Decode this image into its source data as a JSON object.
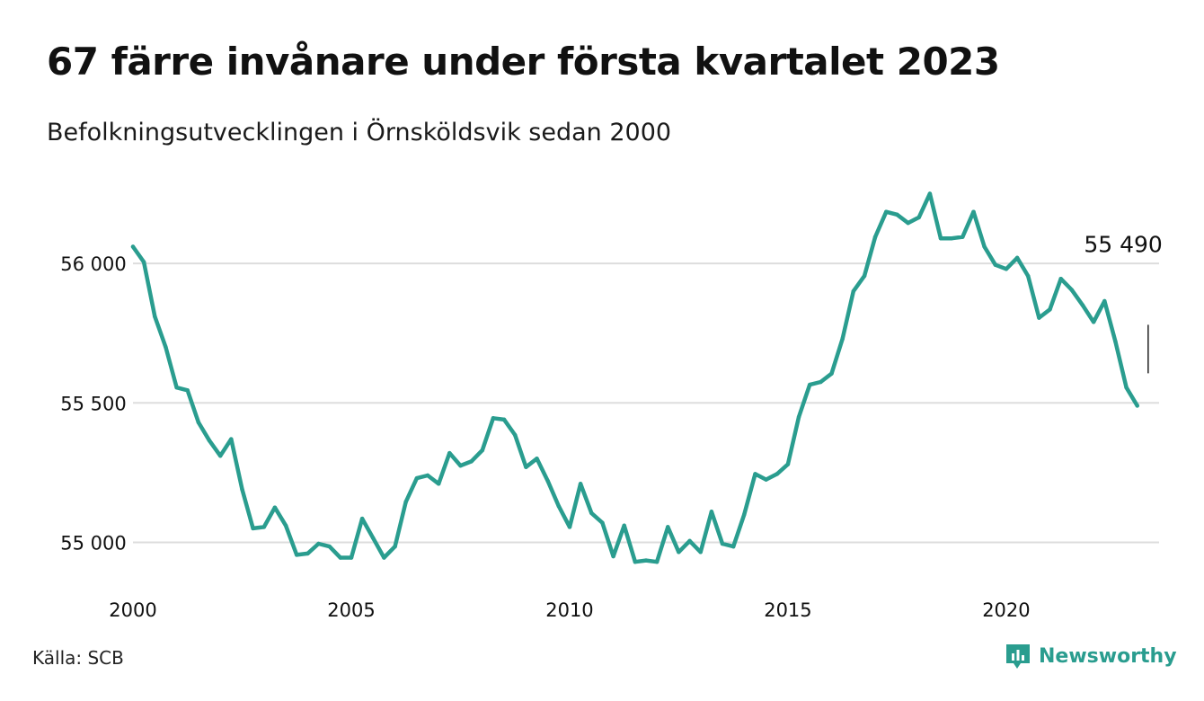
{
  "header": {
    "title": "67 färre invånare under första kvartalet 2023",
    "subtitle": "Befolkningsutvecklingen i Örnsköldsvik sedan 2000"
  },
  "footer": {
    "source": "Källa: SCB",
    "brand": "Newsworthy"
  },
  "colors": {
    "line": "#2a9d8f",
    "grid": "#dddddd",
    "text": "#111111",
    "brand": "#2a9d8f"
  },
  "chart_data": {
    "type": "line",
    "x_ticks": [
      "2000",
      "2005",
      "2010",
      "2015",
      "2020"
    ],
    "y_ticks": [
      "55 000",
      "55 500",
      "56 000"
    ],
    "y_tick_values": [
      55000,
      55500,
      56000
    ],
    "xlim": [
      2000,
      2023.5
    ],
    "ylim": [
      54850,
      56300
    ],
    "grid": "horizontal",
    "annotation": {
      "label": "55 490",
      "x": 2023.25,
      "y": 55490
    },
    "series": [
      {
        "color": "#2a9d8f",
        "points": [
          [
            2000.0,
            56060
          ],
          [
            2000.25,
            56005
          ],
          [
            2000.5,
            55810
          ],
          [
            2000.75,
            55700
          ],
          [
            2001.0,
            55555
          ],
          [
            2001.25,
            55545
          ],
          [
            2001.5,
            55430
          ],
          [
            2001.75,
            55365
          ],
          [
            2002.0,
            55310
          ],
          [
            2002.25,
            55370
          ],
          [
            2002.5,
            55190
          ],
          [
            2002.75,
            55050
          ],
          [
            2003.0,
            55055
          ],
          [
            2003.25,
            55125
          ],
          [
            2003.5,
            55060
          ],
          [
            2003.75,
            54955
          ],
          [
            2004.0,
            54960
          ],
          [
            2004.25,
            54995
          ],
          [
            2004.5,
            54985
          ],
          [
            2004.75,
            54945
          ],
          [
            2005.0,
            54945
          ],
          [
            2005.25,
            55085
          ],
          [
            2005.5,
            55015
          ],
          [
            2005.75,
            54945
          ],
          [
            2006.0,
            54985
          ],
          [
            2006.25,
            55145
          ],
          [
            2006.5,
            55230
          ],
          [
            2006.75,
            55240
          ],
          [
            2007.0,
            55210
          ],
          [
            2007.25,
            55320
          ],
          [
            2007.5,
            55275
          ],
          [
            2007.75,
            55290
          ],
          [
            2008.0,
            55330
          ],
          [
            2008.25,
            55445
          ],
          [
            2008.5,
            55440
          ],
          [
            2008.75,
            55385
          ],
          [
            2009.0,
            55270
          ],
          [
            2009.25,
            55300
          ],
          [
            2009.5,
            55220
          ],
          [
            2009.75,
            55130
          ],
          [
            2010.0,
            55055
          ],
          [
            2010.25,
            55210
          ],
          [
            2010.5,
            55105
          ],
          [
            2010.75,
            55070
          ],
          [
            2011.0,
            54950
          ],
          [
            2011.25,
            55060
          ],
          [
            2011.5,
            54930
          ],
          [
            2011.75,
            54935
          ],
          [
            2012.0,
            54930
          ],
          [
            2012.25,
            55055
          ],
          [
            2012.5,
            54965
          ],
          [
            2012.75,
            55005
          ],
          [
            2013.0,
            54965
          ],
          [
            2013.25,
            55110
          ],
          [
            2013.5,
            54995
          ],
          [
            2013.75,
            54985
          ],
          [
            2014.0,
            55100
          ],
          [
            2014.25,
            55245
          ],
          [
            2014.5,
            55225
          ],
          [
            2014.75,
            55245
          ],
          [
            2015.0,
            55280
          ],
          [
            2015.25,
            55450
          ],
          [
            2015.5,
            55565
          ],
          [
            2015.75,
            55575
          ],
          [
            2016.0,
            55605
          ],
          [
            2016.25,
            55730
          ],
          [
            2016.5,
            55900
          ],
          [
            2016.75,
            55955
          ],
          [
            2017.0,
            56095
          ],
          [
            2017.25,
            56185
          ],
          [
            2017.5,
            56175
          ],
          [
            2017.75,
            56145
          ],
          [
            2018.0,
            56165
          ],
          [
            2018.25,
            56250
          ],
          [
            2018.5,
            56090
          ],
          [
            2018.75,
            56090
          ],
          [
            2019.0,
            56095
          ],
          [
            2019.25,
            56185
          ],
          [
            2019.5,
            56060
          ],
          [
            2019.75,
            55995
          ],
          [
            2020.0,
            55980
          ],
          [
            2020.25,
            56020
          ],
          [
            2020.5,
            55955
          ],
          [
            2020.75,
            55805
          ],
          [
            2021.0,
            55835
          ],
          [
            2021.25,
            55945
          ],
          [
            2021.5,
            55905
          ],
          [
            2021.75,
            55850
          ],
          [
            2022.0,
            55790
          ],
          [
            2022.25,
            55865
          ],
          [
            2022.5,
            55720
          ],
          [
            2022.75,
            55555
          ],
          [
            2023.0,
            55490
          ]
        ]
      }
    ]
  }
}
